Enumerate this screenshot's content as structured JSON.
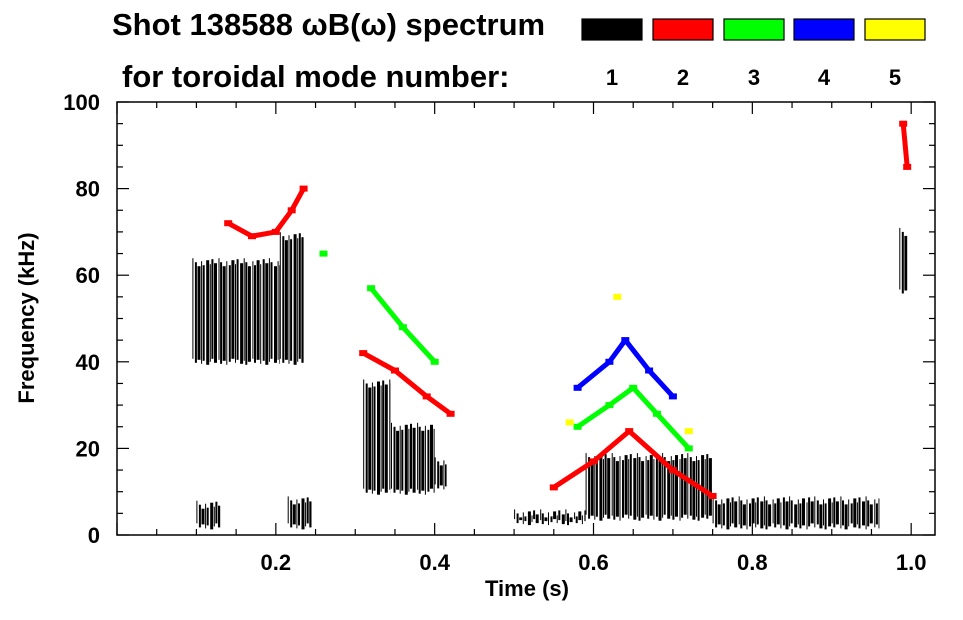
{
  "chart_data": {
    "type": "heatmap",
    "title_line1": "Shot 138588 ωB(ω) spectrum",
    "title_line2": "for toroidal mode number:",
    "xlabel": "Time (s)",
    "ylabel": "Frequency (kHz)",
    "xlim": [
      0.0,
      1.03
    ],
    "ylim": [
      0,
      100
    ],
    "x_ticks": [
      {
        "value": 0.2,
        "label": "0.2"
      },
      {
        "value": 0.4,
        "label": "0.4"
      },
      {
        "value": 0.6,
        "label": "0.6"
      },
      {
        "value": 0.8,
        "label": "0.8"
      },
      {
        "value": 1.0,
        "label": "1.0"
      }
    ],
    "y_ticks": [
      {
        "value": 0,
        "label": "0"
      },
      {
        "value": 20,
        "label": "20"
      },
      {
        "value": 40,
        "label": "40"
      },
      {
        "value": 60,
        "label": "60"
      },
      {
        "value": 80,
        "label": "80"
      },
      {
        "value": 100,
        "label": "100"
      }
    ],
    "legend_position": "top-right",
    "legend": [
      {
        "mode": "1",
        "color": "#000000"
      },
      {
        "mode": "2",
        "color": "#ff0000"
      },
      {
        "mode": "3",
        "color": "#00ff00"
      },
      {
        "mode": "4",
        "color": "#0000ff"
      },
      {
        "mode": "5",
        "color": "#ffff00"
      }
    ],
    "series": [
      {
        "mode": "1",
        "regions": [
          {
            "t0": 0.095,
            "t1": 0.205,
            "f0": 40,
            "f1": 63
          },
          {
            "t0": 0.205,
            "t1": 0.235,
            "f0": 40,
            "f1": 69
          },
          {
            "t0": 0.1,
            "t1": 0.13,
            "f0": 2,
            "f1": 7
          },
          {
            "t0": 0.215,
            "t1": 0.245,
            "f0": 2,
            "f1": 8
          },
          {
            "t0": 0.31,
            "t1": 0.345,
            "f0": 10,
            "f1": 35
          },
          {
            "t0": 0.345,
            "t1": 0.4,
            "f0": 10,
            "f1": 25
          },
          {
            "t0": 0.4,
            "t1": 0.415,
            "f0": 11,
            "f1": 17
          },
          {
            "t0": 0.5,
            "t1": 0.59,
            "f0": 3,
            "f1": 5
          },
          {
            "t0": 0.59,
            "t1": 0.75,
            "f0": 4,
            "f1": 18
          },
          {
            "t0": 0.75,
            "t1": 0.96,
            "f0": 2,
            "f1": 8
          },
          {
            "t0": 0.985,
            "t1": 0.995,
            "f0": 56,
            "f1": 70
          }
        ]
      },
      {
        "mode": "2",
        "points": [
          {
            "t": 0.14,
            "f": 72
          },
          {
            "t": 0.17,
            "f": 69
          },
          {
            "t": 0.2,
            "f": 70
          },
          {
            "t": 0.22,
            "f": 75
          },
          {
            "t": 0.235,
            "f": 80
          },
          {
            "t": 0.31,
            "f": 42
          },
          {
            "t": 0.35,
            "f": 38
          },
          {
            "t": 0.39,
            "f": 32
          },
          {
            "t": 0.42,
            "f": 28
          },
          {
            "t": 0.55,
            "f": 11
          },
          {
            "t": 0.6,
            "f": 17
          },
          {
            "t": 0.645,
            "f": 24
          },
          {
            "t": 0.7,
            "f": 15
          },
          {
            "t": 0.75,
            "f": 9
          },
          {
            "t": 0.99,
            "f": 95
          },
          {
            "t": 0.995,
            "f": 85
          }
        ]
      },
      {
        "mode": "3",
        "points": [
          {
            "t": 0.26,
            "f": 65
          },
          {
            "t": 0.32,
            "f": 57
          },
          {
            "t": 0.36,
            "f": 48
          },
          {
            "t": 0.4,
            "f": 40
          },
          {
            "t": 0.58,
            "f": 25
          },
          {
            "t": 0.62,
            "f": 30
          },
          {
            "t": 0.65,
            "f": 34
          },
          {
            "t": 0.68,
            "f": 28
          },
          {
            "t": 0.72,
            "f": 20
          }
        ]
      },
      {
        "mode": "4",
        "points": [
          {
            "t": 0.58,
            "f": 34
          },
          {
            "t": 0.62,
            "f": 40
          },
          {
            "t": 0.64,
            "f": 45
          },
          {
            "t": 0.67,
            "f": 38
          },
          {
            "t": 0.7,
            "f": 32
          }
        ]
      },
      {
        "mode": "5",
        "points": [
          {
            "t": 0.57,
            "f": 26
          },
          {
            "t": 0.63,
            "f": 55
          },
          {
            "t": 0.72,
            "f": 24
          }
        ]
      }
    ]
  }
}
